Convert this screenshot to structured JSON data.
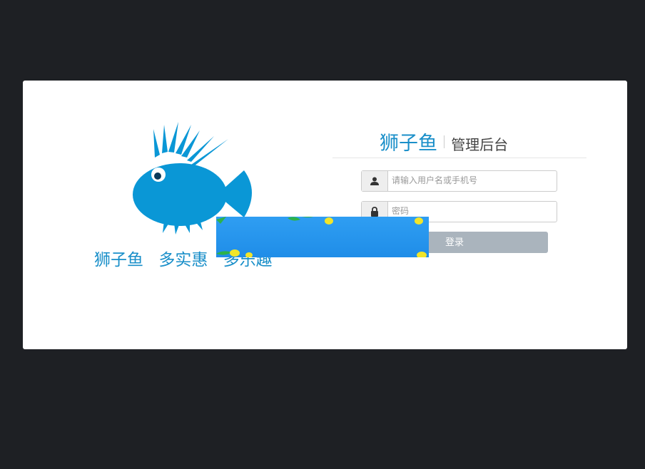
{
  "left_panel": {
    "slogan": [
      "狮子鱼",
      "多实惠",
      "多乐趣"
    ]
  },
  "brand": {
    "name": "狮子鱼",
    "subtitle": "管理后台"
  },
  "form": {
    "username_placeholder": "请输入用户名或手机号",
    "password_placeholder": "密码",
    "login_label": "登录"
  },
  "colors": {
    "background": "#1e2024",
    "brand_blue": "#1a8fc9",
    "button": "#aab4bd"
  },
  "icons": {
    "user": "user-icon",
    "lock": "lock-icon"
  }
}
